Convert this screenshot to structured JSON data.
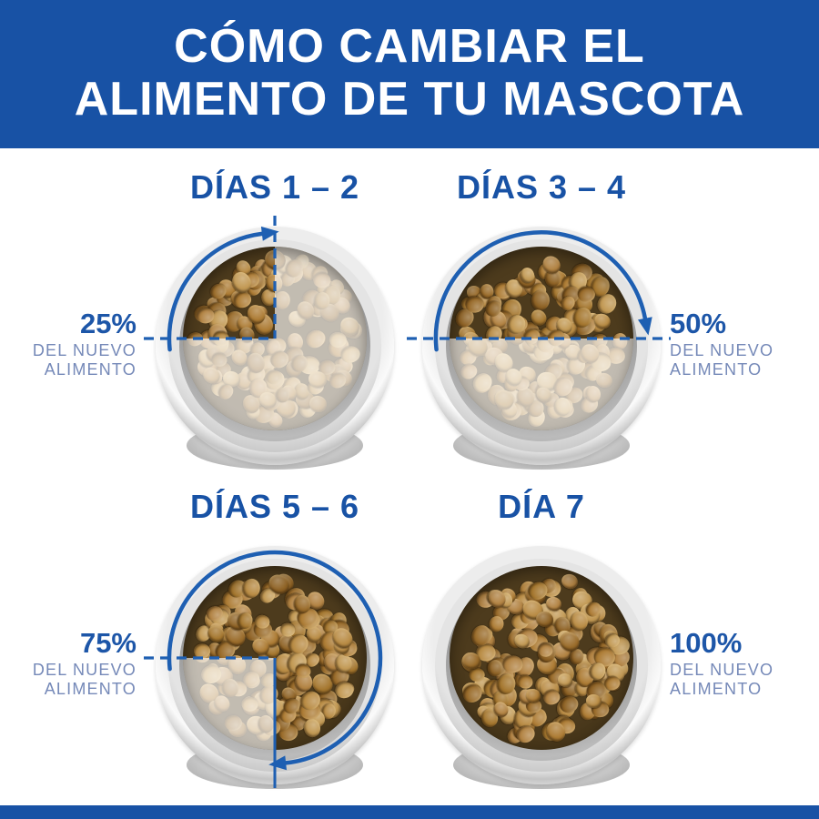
{
  "header": {
    "title_line1": "CÓMO CAMBIAR EL",
    "title_line2": "ALIMENTO DE TU MASCOTA"
  },
  "steps": [
    {
      "heading": "DÍAS 1 – 2",
      "percent": "25%",
      "percent_value": 25,
      "label_line1": "DEL NUEVO",
      "label_line2": "ALIMENTO"
    },
    {
      "heading": "DÍAS 3 – 4",
      "percent": "50%",
      "percent_value": 50,
      "label_line1": "DEL NUEVO",
      "label_line2": "ALIMENTO"
    },
    {
      "heading": "DÍAS 5 – 6",
      "percent": "75%",
      "percent_value": 75,
      "label_line1": "DEL NUEVO",
      "label_line2": "ALIMENTO"
    },
    {
      "heading": "DÍA 7",
      "percent": "100%",
      "percent_value": 100,
      "label_line1": "DEL NUEVO",
      "label_line2": "ALIMENTO"
    }
  ],
  "colors": {
    "banner_blue": "#1852a5",
    "heading_blue": "#1852a5",
    "percent_blue": "#1d56a8",
    "sublabel_blue": "#7589b8",
    "line_blue": "#1e5fb2",
    "arc_blue": "#1e5fb2",
    "old_food_fade": "rgba(255,255,255,0.66)",
    "kibble_palette": [
      "#ad7c35",
      "#b98c45",
      "#9a6c2b",
      "#c29954",
      "#8f6326",
      "#a5772f",
      "#b28343"
    ]
  }
}
